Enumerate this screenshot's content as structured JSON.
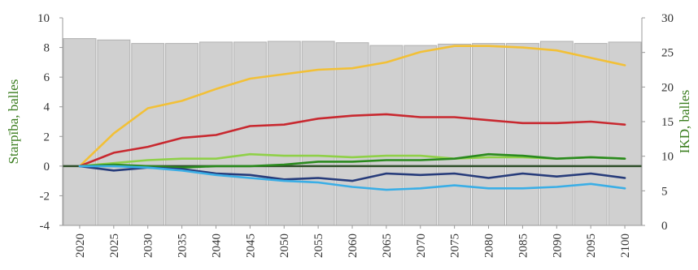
{
  "chart_data": {
    "type": "bar+line",
    "title": "",
    "xlabel": "",
    "ylabel_left": "Starpība, balles",
    "ylabel_right": "IKD, balles",
    "ylim_left": [
      -4,
      10
    ],
    "ylim_right": [
      0,
      30
    ],
    "yticks_left": [
      "-4",
      "-2",
      "0",
      "2",
      "4",
      "6",
      "8",
      "10"
    ],
    "yticks_right": [
      "0",
      "5",
      "10",
      "15",
      "20",
      "25",
      "30"
    ],
    "grid": false,
    "legend": "none",
    "x": [
      2020,
      2025,
      2030,
      2035,
      2040,
      2045,
      2050,
      2055,
      2060,
      2065,
      2070,
      2075,
      2080,
      2085,
      2090,
      2095,
      2100
    ],
    "x_tick_labels": [
      "2020",
      "2025",
      "2030",
      "2035",
      "2040",
      "2045",
      "2050",
      "2055",
      "2060",
      "2065",
      "2070",
      "2075",
      "2080",
      "2085",
      "2090",
      "2095",
      "2100"
    ],
    "bars": {
      "axis": "right",
      "color": "#d0d0d0",
      "values": [
        27.0,
        26.8,
        26.3,
        26.3,
        26.5,
        26.5,
        26.6,
        26.6,
        26.4,
        26.0,
        26.0,
        26.2,
        26.3,
        26.3,
        26.6,
        26.3,
        26.5
      ]
    },
    "series": [
      {
        "color": "#f2c037",
        "axis": "left",
        "values": [
          0.0,
          2.2,
          3.9,
          4.4,
          5.2,
          5.9,
          6.2,
          6.5,
          6.6,
          7.0,
          7.7,
          8.1,
          8.1,
          8.0,
          7.8,
          7.3,
          6.8
        ]
      },
      {
        "color": "#c8282f",
        "axis": "left",
        "values": [
          0.0,
          0.9,
          1.3,
          1.9,
          2.1,
          2.7,
          2.8,
          3.2,
          3.4,
          3.5,
          3.3,
          3.3,
          3.1,
          2.9,
          2.9,
          3.0,
          2.8
        ]
      },
      {
        "color": "#8fd048",
        "axis": "left",
        "values": [
          0.0,
          0.2,
          0.4,
          0.5,
          0.5,
          0.8,
          0.7,
          0.7,
          0.6,
          0.7,
          0.7,
          0.5,
          0.6,
          0.6,
          0.5,
          0.6,
          0.5
        ]
      },
      {
        "color": "#2a8a1e",
        "axis": "left",
        "values": [
          0.0,
          0.1,
          0.0,
          -0.1,
          0.0,
          0.0,
          0.1,
          0.3,
          0.3,
          0.4,
          0.4,
          0.5,
          0.8,
          0.7,
          0.5,
          0.6,
          0.5
        ]
      },
      {
        "color": "#263b7a",
        "axis": "left",
        "values": [
          0.0,
          -0.3,
          -0.1,
          -0.2,
          -0.5,
          -0.6,
          -0.9,
          -0.8,
          -1.0,
          -0.5,
          -0.6,
          -0.5,
          -0.8,
          -0.5,
          -0.7,
          -0.5,
          -0.8
        ]
      },
      {
        "color": "#3aaee6",
        "axis": "left",
        "values": [
          0.0,
          0.0,
          -0.1,
          -0.3,
          -0.6,
          -0.8,
          -1.0,
          -1.1,
          -1.4,
          -1.6,
          -1.5,
          -1.3,
          -1.5,
          -1.5,
          -1.4,
          -1.2,
          -1.5
        ]
      }
    ]
  },
  "colors": {
    "left_axis_title": "#3a7d1e",
    "zero_line": "#2f4f2a",
    "bar_fill": "#d0d0d0",
    "bar_stroke": "#b0b0b0"
  }
}
